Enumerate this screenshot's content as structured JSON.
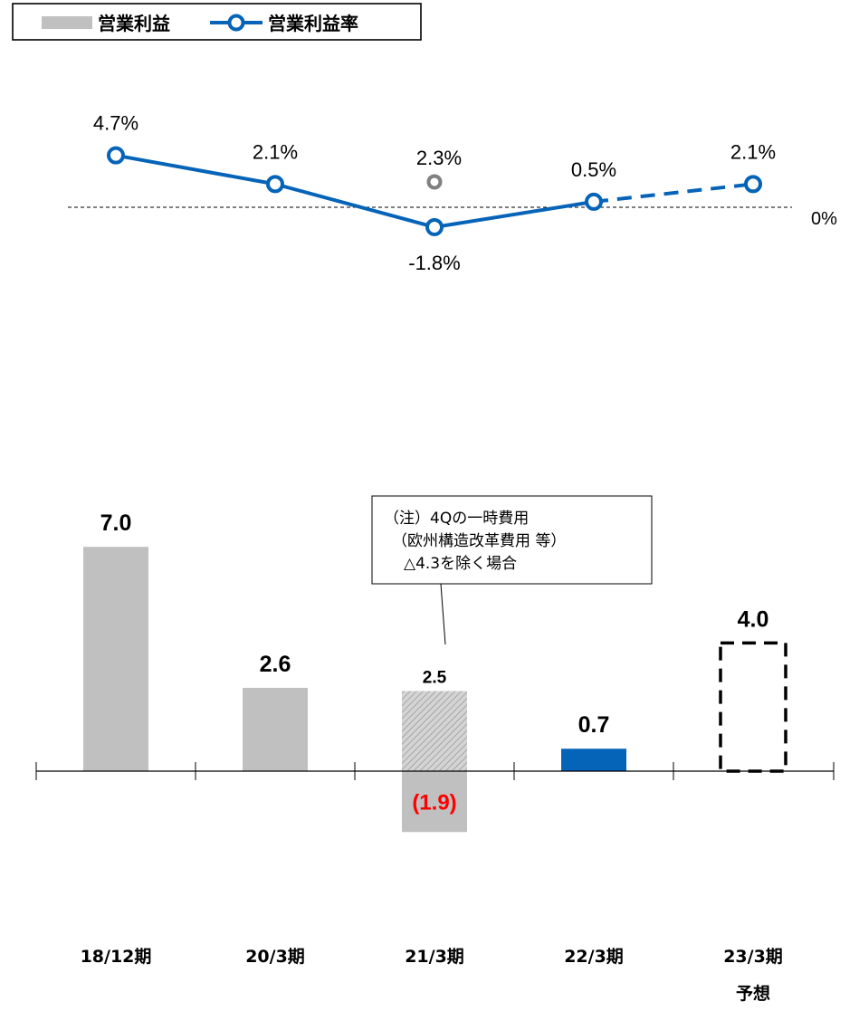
{
  "legend": {
    "bar_label": "営業利益",
    "line_label": "営業利益率"
  },
  "note": {
    "line1": "（注）4Qの一時費用",
    "line2": "（欧州構造改革費用 等）",
    "line3": "△4.3を除く場合"
  },
  "colors": {
    "bar_gray": "#c0c0c0",
    "bar_blue": "#0563b8",
    "line_blue": "#0563b8",
    "marker_gray": "#808080",
    "negative_label": "#ff0000"
  },
  "chart_data": [
    {
      "type": "line",
      "series": [
        {
          "name": "営業利益率",
          "values": [
            4.7,
            2.1,
            -1.8,
            0.5,
            2.1
          ],
          "labels": [
            "4.7%",
            "2.1%",
            "-1.8%",
            "0.5%",
            "2.1%"
          ]
        }
      ],
      "alt_point": {
        "category_index": 2,
        "value": 2.3,
        "label": "2.3%"
      },
      "forecast_from_index": 3,
      "zero_label": "0%"
    },
    {
      "type": "bar",
      "categories": [
        "18/12期",
        "20/3期",
        "21/3期",
        "22/3期",
        "23/3期"
      ],
      "category_sublabels": [
        "",
        "",
        "",
        "",
        "予想"
      ],
      "series": [
        {
          "name": "営業利益",
          "values": [
            7.0,
            2.6,
            -1.9,
            0.7,
            4.0
          ],
          "labels": [
            "7.0",
            "2.6",
            "(1.9)",
            "0.7",
            "4.0"
          ]
        }
      ],
      "alt_bar": {
        "category_index": 2,
        "value": 2.5,
        "label": "2.5"
      },
      "forecast_index": 4,
      "highlight_index": 3
    }
  ]
}
